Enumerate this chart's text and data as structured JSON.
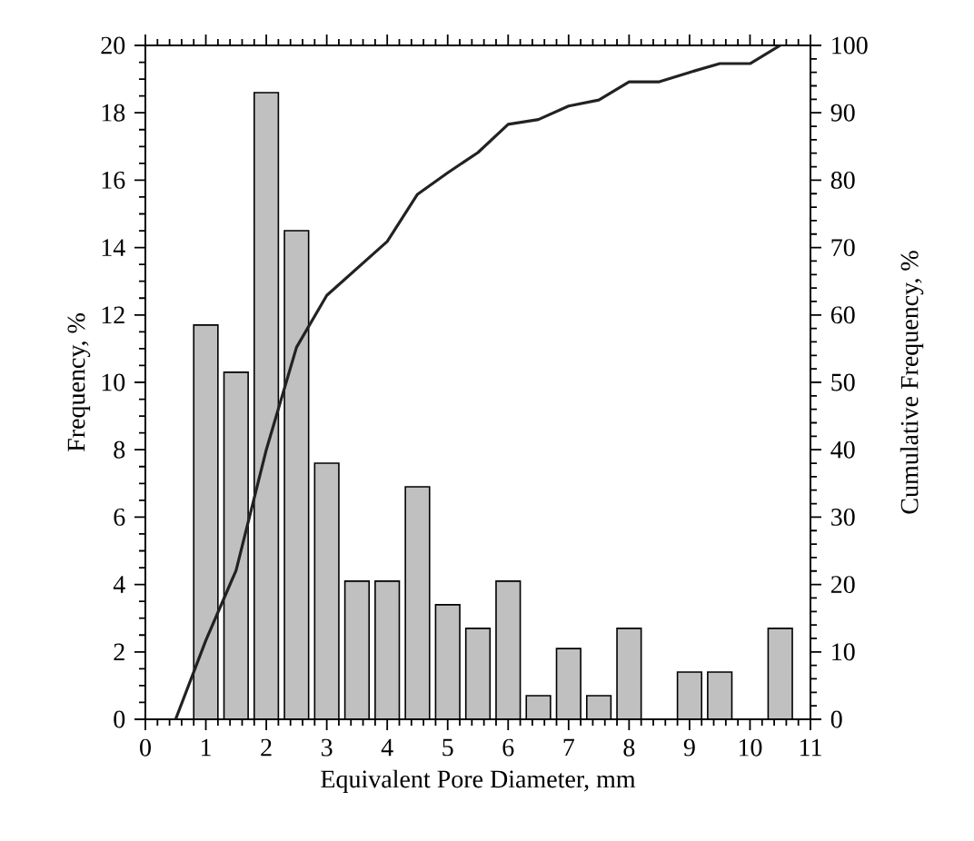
{
  "chart_data": {
    "type": "bar",
    "xlabel": "Equivalent Pore Diameter, mm",
    "ylabel": "Frequency, %",
    "y2label": "Cumulative Frequency, %",
    "x": [
      1,
      1.5,
      2,
      2.5,
      3,
      3.5,
      4,
      4.5,
      5,
      5.5,
      6,
      6.5,
      7,
      7.5,
      8,
      8.5,
      9,
      9.5,
      10,
      10.5
    ],
    "series": [
      {
        "color": "#c0c0c0",
        "values": [
          11.7,
          10.3,
          18.6,
          14.5,
          7.6,
          4.1,
          4.1,
          6.9,
          3.4,
          2.7,
          4.1,
          0.7,
          2.1,
          0.7,
          2.7,
          null,
          1.4,
          1.4,
          null,
          2.7
        ]
      },
      {
        "type": "line",
        "axis": "y2",
        "color": "#222222",
        "x": [
          0.5,
          1,
          1.5,
          2,
          2.5,
          3,
          3.5,
          4,
          4.5,
          5,
          5.5,
          6,
          6.5,
          7,
          7.5,
          8,
          8.5,
          9,
          9.5,
          10,
          10.5
        ],
        "values": [
          0,
          11.7,
          22.1,
          40,
          55.2,
          62.9,
          66.9,
          70.9,
          77.9,
          81.1,
          84.1,
          88.3,
          89,
          91,
          91.9,
          94.6,
          94.6,
          96,
          97.3,
          97.3,
          100
        ]
      }
    ],
    "xlim": [
      0,
      11
    ],
    "xticks": [
      0,
      1,
      2,
      3,
      4,
      5,
      6,
      7,
      8,
      9,
      10,
      11
    ],
    "ylim": [
      0,
      20
    ],
    "yticks": [
      0,
      2,
      4,
      6,
      8,
      10,
      12,
      14,
      16,
      18,
      20
    ],
    "y2lim": [
      0,
      100
    ],
    "y2ticks": [
      0,
      10,
      20,
      30,
      40,
      50,
      60,
      70,
      80,
      90,
      100
    ],
    "marker": "none",
    "line_style": "solid"
  }
}
